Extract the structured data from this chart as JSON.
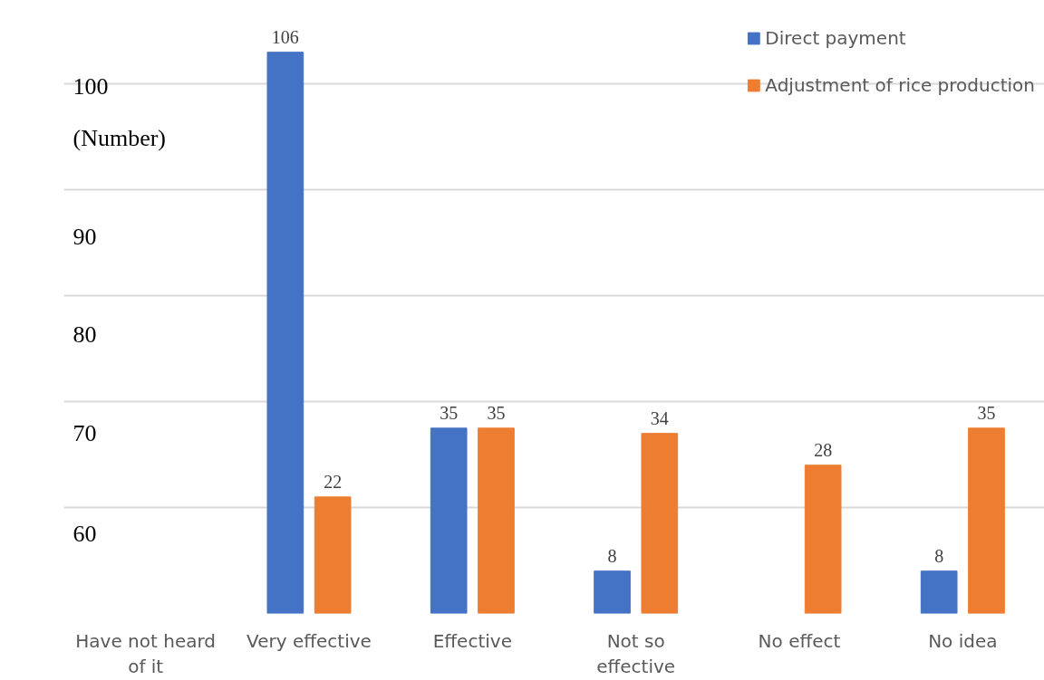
{
  "chart_data": {
    "type": "bar",
    "categories": [
      "Have not heard of it",
      "Very effective",
      "Effective",
      "Not so effective",
      "No effect",
      "No idea"
    ],
    "series": [
      {
        "name": "Direct payment",
        "color": "#4472c4",
        "values": [
          null,
          106,
          35,
          8,
          null,
          8
        ]
      },
      {
        "name": "Adjustment of rice production",
        "color": "#ed7d31",
        "values": [
          null,
          22,
          35,
          34,
          28,
          35
        ]
      }
    ],
    "ylabel": "(Number)",
    "annotations": [
      "60",
      "70",
      "80",
      "90",
      "100"
    ],
    "grid": "y",
    "legend": "top right",
    "data_labels": true
  }
}
